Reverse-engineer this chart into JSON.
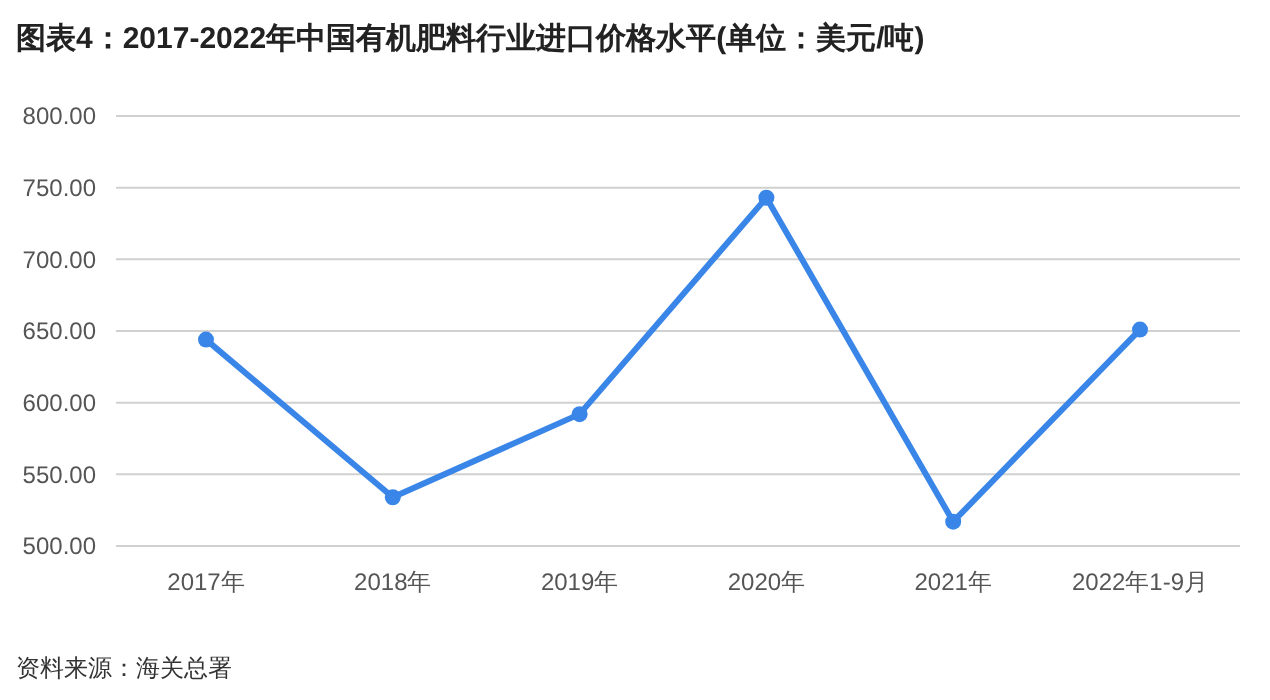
{
  "chart_data": {
    "type": "line",
    "title": "图表4：2017-2022年中国有机肥料行业进口价格水平(单位：美元/吨)",
    "categories": [
      "2017年",
      "2018年",
      "2019年",
      "2020年",
      "2021年",
      "2022年1-9月"
    ],
    "series": [
      {
        "color": "#3a86e8",
        "values": [
          644,
          534,
          592,
          743,
          517,
          651
        ]
      }
    ],
    "ylim": [
      500,
      800
    ],
    "yticks": [
      {
        "value": 500,
        "label": "500.00"
      },
      {
        "value": 550,
        "label": "550.00"
      },
      {
        "value": 600,
        "label": "600.00"
      },
      {
        "value": 650,
        "label": "650.00"
      },
      {
        "value": 700,
        "label": "700.00"
      },
      {
        "value": 750,
        "label": "750.00"
      },
      {
        "value": 800,
        "label": "800.00"
      }
    ],
    "grid": "y",
    "marker": "circle",
    "line_style": "solid",
    "annotations": [
      "资料来源：海关总署"
    ]
  }
}
